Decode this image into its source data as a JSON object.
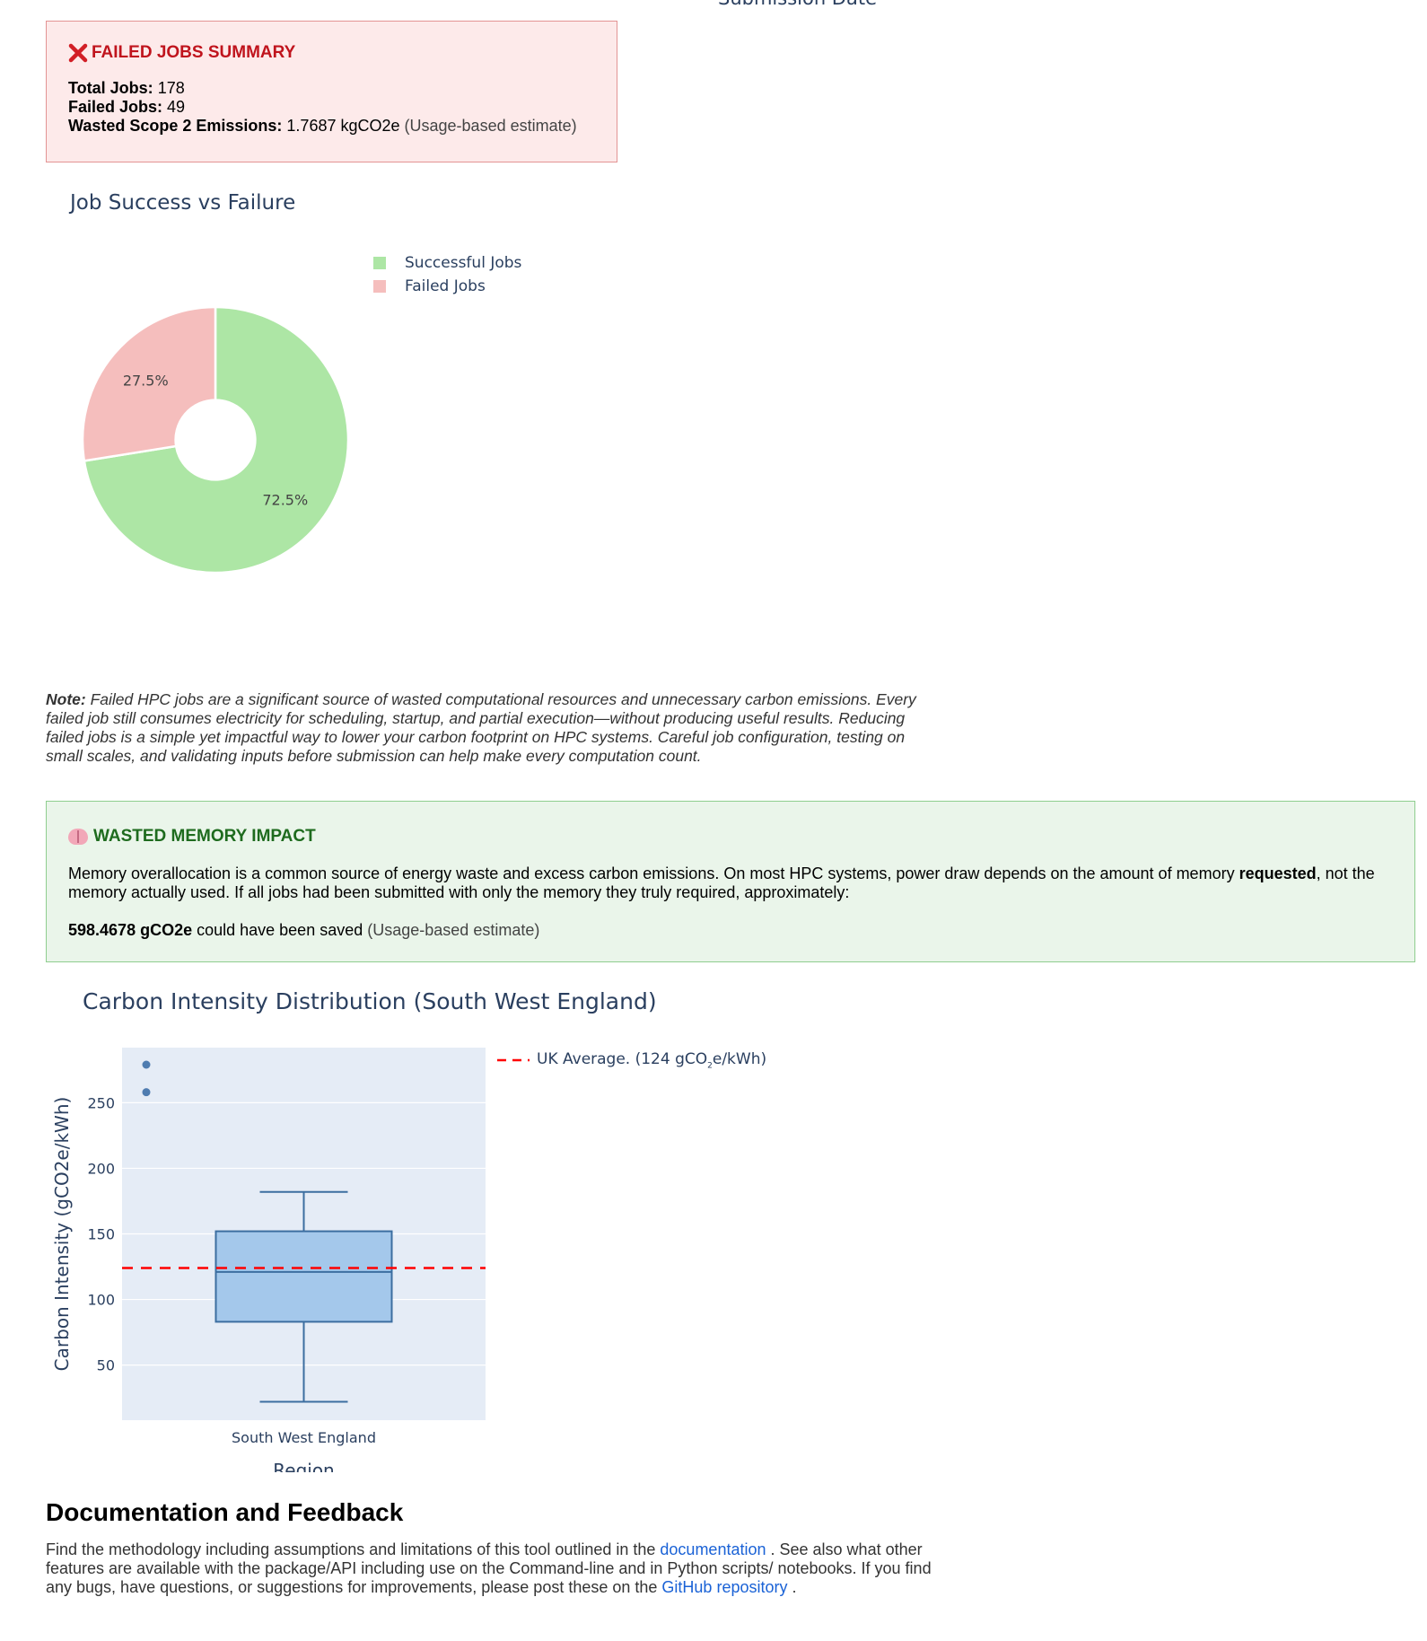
{
  "top_axis_cut": "Submission Date",
  "failed_summary": {
    "title": "FAILED JOBS SUMMARY",
    "total_label": "Total Jobs:",
    "total_value": "178",
    "failed_label": "Failed Jobs:",
    "failed_value": "49",
    "wasted_label": "Wasted Scope 2 Emissions:",
    "wasted_value": "1.7687 kgCO2e",
    "wasted_note": "(Usage-based estimate)",
    "icon": "cross-mark-icon",
    "accent": "#c0141d"
  },
  "pie": {
    "title": "Job Success vs Failure",
    "legend": [
      "Successful Jobs",
      "Failed Jobs"
    ],
    "colors": [
      "#ade6a5",
      "#f5bebd"
    ]
  },
  "note": {
    "label": "Note:",
    "text": "Failed HPC jobs are a significant source of wasted computational resources and unnecessary carbon emissions. Every failed job still consumes electricity for scheduling, startup, and partial execution—without producing useful results. Reducing failed jobs is a simple yet impactful way to lower your carbon footprint on HPC systems. Careful job configuration, testing on small scales, and validating inputs before submission can help make every computation count."
  },
  "memory": {
    "title": "WASTED MEMORY IMPACT",
    "icon": "brain-icon",
    "text_before": "Memory overallocation is a common source of energy waste and excess carbon emissions. On most HPC systems, power draw depends on the amount of memory ",
    "text_bold": "requested",
    "text_after": ", not the memory actually used. If all jobs had been submitted with only the memory they truly required, approximately:",
    "saved_value": "598.4678 gCO2e",
    "saved_text": " could have been saved ",
    "saved_note": "(Usage-based estimate)"
  },
  "box": {
    "title": "Carbon Intensity Distribution (South West England)",
    "ylabel": "Carbon Intensity (gCO2e/kWh)",
    "xlabel": "Region",
    "legend_prefix": "UK Average. (124 gCO",
    "legend_sub": "2",
    "legend_suffix": "e/kWh)",
    "box_color": "#a4c8eb",
    "line_color": "#3c6ea0",
    "ref_color": "#ff0000"
  },
  "chart_data": [
    {
      "type": "pie",
      "title": "Job Success vs Failure",
      "labels": [
        "Successful Jobs",
        "Failed Jobs"
      ],
      "values": [
        129,
        49
      ],
      "percent_labels": [
        "72.5%",
        "27.5%"
      ],
      "hole": 0.3,
      "legend": "top-right"
    },
    {
      "type": "box",
      "title": "Carbon Intensity Distribution (South West England)",
      "categories": [
        "South West England"
      ],
      "stats": {
        "min": 22,
        "q1": 83,
        "median": 121,
        "q3": 152,
        "max": 182
      },
      "outliers": [
        258,
        279
      ],
      "reference_line": {
        "name": "UK Average. (124 gCO2e/kWh)",
        "y": 124
      },
      "ylim": [
        8,
        292
      ],
      "yticks": [
        50,
        100,
        150,
        200,
        250
      ],
      "xlabel": "Region",
      "ylabel": "Carbon Intensity (gCO2e/kWh)",
      "grid": true,
      "legend": "top-right"
    }
  ],
  "docs": {
    "title": "Documentation and Feedback",
    "text1": "Find the methodology including assumptions and limitations of this tool outlined in the ",
    "link1": "documentation",
    "text2": " . See also what other features are available with the package/API including use on the Command-line and in Python scripts/ notebooks. If you find any bugs, have questions, or suggestions for improvements, please post these on the ",
    "link2": "GitHub repository",
    "text3": " ."
  }
}
